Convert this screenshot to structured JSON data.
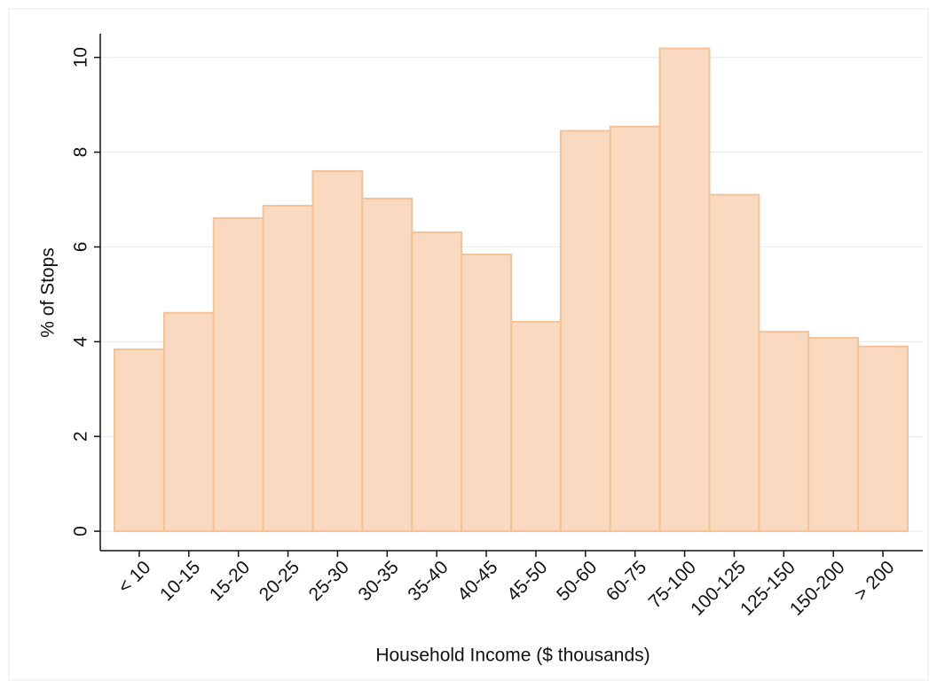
{
  "chart_data": {
    "type": "bar",
    "x_label": "Household Income ($ thousands)",
    "y_label": "% of Stops",
    "categories": [
      "< 10",
      "10-15",
      "15-20",
      "20-25",
      "25-30",
      "30-35",
      "35-40",
      "40-45",
      "45-50",
      "50-60",
      "60-75",
      "75-100",
      "100-125",
      "125-150",
      "150-200",
      "> 200"
    ],
    "values": [
      3.84,
      4.61,
      6.61,
      6.87,
      7.6,
      7.02,
      6.31,
      5.84,
      4.42,
      8.45,
      8.54,
      10.19,
      7.1,
      4.21,
      4.08,
      3.9
    ],
    "color": "#f9d9c0",
    "edge_color": "#f3c298",
    "ylim": [
      -0.41,
      10.5
    ],
    "yticks": [
      0,
      2,
      4,
      6,
      8,
      10
    ],
    "grid": true
  }
}
